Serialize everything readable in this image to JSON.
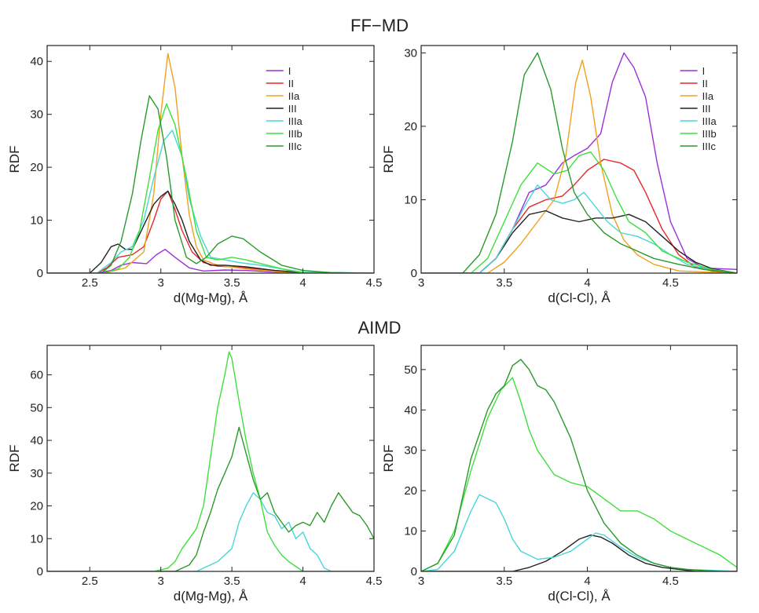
{
  "section_titles": {
    "top": "FF−MD",
    "bottom": "AIMD"
  },
  "colors": {
    "I": "#9b30d9",
    "II": "#e8262b",
    "IIa": "#f2a01f",
    "III": "#222222",
    "IIIa": "#49d6d6",
    "IIIb": "#3ee03e",
    "IIIc": "#2a9a2a"
  },
  "chart_data": [
    {
      "type": "line",
      "section": "FF-MD",
      "xlabel": "d(Mg-Mg), Å",
      "ylabel": "RDF",
      "xlim": [
        2.2,
        4.5
      ],
      "ylim": [
        0,
        43
      ],
      "xticks": [
        2.5,
        3,
        3.5,
        4,
        4.5
      ],
      "yticks": [
        0,
        10,
        20,
        30,
        40
      ],
      "legend": "top-right",
      "series": [
        {
          "name": "I",
          "x": [
            2.2,
            2.55,
            2.65,
            2.72,
            2.8,
            2.9,
            2.97,
            3.03,
            3.1,
            3.2,
            3.3,
            3.45,
            3.6,
            3.8,
            4.0,
            4.5
          ],
          "values": [
            0,
            0,
            0.5,
            1.5,
            2.0,
            1.8,
            3.5,
            4.5,
            3.0,
            1.0,
            0.4,
            0.6,
            0.5,
            0.2,
            0.1,
            0
          ]
        },
        {
          "name": "II",
          "x": [
            2.2,
            2.55,
            2.62,
            2.7,
            2.8,
            2.88,
            2.95,
            3.0,
            3.05,
            3.1,
            3.15,
            3.22,
            3.3,
            3.4,
            3.5,
            3.6,
            3.8,
            4.0,
            4.5
          ],
          "values": [
            0,
            0,
            1.0,
            3.0,
            3.5,
            5.0,
            10.0,
            14.0,
            15.5,
            12.0,
            8.0,
            4.0,
            2.0,
            1.3,
            1.2,
            1.0,
            0.5,
            0.1,
            0
          ]
        },
        {
          "name": "IIa",
          "x": [
            2.2,
            2.6,
            2.75,
            2.88,
            2.95,
            3.0,
            3.05,
            3.1,
            3.15,
            3.2,
            3.25,
            3.3,
            3.4,
            3.6,
            3.8,
            4.0,
            4.5
          ],
          "values": [
            0,
            0,
            1.0,
            4.0,
            15.0,
            30.0,
            41.5,
            35.0,
            22.0,
            11.0,
            5.0,
            2.5,
            1.5,
            0.8,
            0.3,
            0.1,
            0
          ]
        },
        {
          "name": "III",
          "x": [
            2.2,
            2.5,
            2.58,
            2.65,
            2.7,
            2.75,
            2.8,
            2.88,
            2.95,
            3.0,
            3.05,
            3.1,
            3.15,
            3.2,
            3.28,
            3.35,
            3.45,
            3.6,
            3.8,
            4.0,
            4.5
          ],
          "values": [
            0,
            0,
            2.0,
            5.0,
            5.5,
            4.5,
            4.5,
            9.0,
            13.0,
            14.5,
            15.5,
            13.0,
            10.0,
            6.0,
            2.5,
            1.5,
            1.5,
            1.2,
            0.5,
            0.1,
            0
          ]
        },
        {
          "name": "IIIa",
          "x": [
            2.2,
            2.55,
            2.65,
            2.72,
            2.8,
            2.88,
            2.95,
            3.02,
            3.08,
            3.15,
            3.2,
            3.28,
            3.35,
            3.45,
            3.55,
            3.7,
            3.85,
            4.0,
            4.5
          ],
          "values": [
            0,
            0,
            2.0,
            4.0,
            5.0,
            10.0,
            18.0,
            25.0,
            27.0,
            22.0,
            14.0,
            7.0,
            3.0,
            2.5,
            2.0,
            1.5,
            0.8,
            0.2,
            0
          ]
        },
        {
          "name": "IIIb",
          "x": [
            2.2,
            2.6,
            2.7,
            2.78,
            2.85,
            2.92,
            2.98,
            3.04,
            3.1,
            3.18,
            3.25,
            3.32,
            3.4,
            3.5,
            3.6,
            3.75,
            3.9,
            4.0,
            4.5
          ],
          "values": [
            0,
            0,
            0.8,
            3.0,
            8.0,
            18.0,
            27.0,
            32.0,
            28.0,
            18.0,
            8.0,
            3.0,
            2.5,
            3.0,
            2.5,
            1.5,
            0.5,
            0.1,
            0
          ]
        },
        {
          "name": "IIIc",
          "x": [
            2.2,
            2.58,
            2.65,
            2.72,
            2.8,
            2.86,
            2.92,
            2.98,
            3.04,
            3.1,
            3.18,
            3.25,
            3.32,
            3.4,
            3.5,
            3.58,
            3.7,
            3.85,
            4.0,
            4.2,
            4.5
          ],
          "values": [
            0,
            0,
            1.5,
            6.0,
            15.0,
            25.0,
            33.5,
            31.0,
            22.0,
            10.0,
            3.0,
            1.8,
            3.0,
            5.5,
            7.0,
            6.5,
            4.0,
            1.5,
            0.5,
            0.1,
            0
          ]
        }
      ]
    },
    {
      "type": "line",
      "section": "FF-MD",
      "xlabel": "d(Cl-Cl), Å",
      "ylabel": "RDF",
      "xlim": [
        3.0,
        4.9
      ],
      "ylim": [
        0,
        31
      ],
      "xticks": [
        3,
        3.5,
        4,
        4.5
      ],
      "yticks": [
        0,
        10,
        20,
        30
      ],
      "legend": "top-right",
      "series": [
        {
          "name": "I",
          "x": [
            3.0,
            3.35,
            3.45,
            3.55,
            3.65,
            3.75,
            3.85,
            3.92,
            4.0,
            4.08,
            4.15,
            4.22,
            4.28,
            4.35,
            4.42,
            4.5,
            4.6,
            4.7,
            4.9
          ],
          "values": [
            0,
            0,
            2.0,
            6.0,
            11.0,
            12.0,
            15.0,
            16.0,
            17.0,
            19.0,
            26.0,
            30.0,
            28.0,
            24.0,
            15.0,
            7.0,
            2.0,
            0.7,
            0.5
          ]
        },
        {
          "name": "II",
          "x": [
            3.0,
            3.35,
            3.45,
            3.55,
            3.65,
            3.75,
            3.85,
            3.92,
            4.0,
            4.1,
            4.2,
            4.28,
            4.35,
            4.45,
            4.55,
            4.65,
            4.75,
            4.9
          ],
          "values": [
            0,
            0,
            2.0,
            6.0,
            9.0,
            10.0,
            10.5,
            12.0,
            14.0,
            15.5,
            15.0,
            14.0,
            11.0,
            6.0,
            2.5,
            0.8,
            0.3,
            0
          ]
        },
        {
          "name": "IIa",
          "x": [
            3.0,
            3.4,
            3.5,
            3.6,
            3.7,
            3.8,
            3.87,
            3.93,
            3.97,
            4.02,
            4.08,
            4.15,
            4.22,
            4.3,
            4.4,
            4.55,
            4.9
          ],
          "values": [
            0,
            0,
            1.5,
            4.0,
            7.0,
            10.0,
            16.0,
            26.0,
            29.0,
            24.0,
            15.0,
            8.0,
            4.5,
            2.5,
            1.2,
            0.3,
            0
          ]
        },
        {
          "name": "III",
          "x": [
            3.0,
            3.35,
            3.45,
            3.55,
            3.65,
            3.75,
            3.85,
            3.95,
            4.05,
            4.15,
            4.25,
            4.35,
            4.45,
            4.55,
            4.65,
            4.75,
            4.9
          ],
          "values": [
            0,
            0,
            2.0,
            5.5,
            8.0,
            8.5,
            7.5,
            7.0,
            7.5,
            7.5,
            8.0,
            7.0,
            5.0,
            3.0,
            1.5,
            0.6,
            0
          ]
        },
        {
          "name": "IIIa",
          "x": [
            3.0,
            3.35,
            3.45,
            3.55,
            3.62,
            3.7,
            3.78,
            3.85,
            3.92,
            3.98,
            4.05,
            4.12,
            4.2,
            4.3,
            4.4,
            4.5,
            4.6,
            4.75,
            4.9
          ],
          "values": [
            0,
            0,
            2.0,
            6.0,
            9.0,
            12.0,
            10.0,
            9.5,
            10.0,
            11.0,
            9.0,
            7.0,
            5.5,
            5.0,
            4.0,
            2.5,
            1.2,
            0.4,
            0
          ]
        },
        {
          "name": "IIIb",
          "x": [
            3.0,
            3.3,
            3.4,
            3.5,
            3.6,
            3.7,
            3.8,
            3.88,
            3.95,
            4.02,
            4.1,
            4.18,
            4.25,
            4.35,
            4.45,
            4.6,
            4.75,
            4.9
          ],
          "values": [
            0,
            0,
            2.0,
            7.0,
            12.0,
            15.0,
            13.5,
            14.0,
            16.0,
            16.5,
            14.0,
            10.0,
            7.0,
            5.5,
            3.0,
            1.5,
            0.5,
            0
          ]
        },
        {
          "name": "IIIc",
          "x": [
            3.0,
            3.25,
            3.35,
            3.45,
            3.55,
            3.62,
            3.7,
            3.78,
            3.85,
            3.92,
            4.0,
            4.1,
            4.2,
            4.3,
            4.4,
            4.55,
            4.7,
            4.9
          ],
          "values": [
            0,
            0,
            2.5,
            8.0,
            18.0,
            27.0,
            30.0,
            25.0,
            17.0,
            11.0,
            8.0,
            5.5,
            4.0,
            3.0,
            2.0,
            1.2,
            0.5,
            0
          ]
        }
      ]
    },
    {
      "type": "line",
      "section": "AIMD",
      "xlabel": "d(Mg-Mg), Å",
      "ylabel": "RDF",
      "xlim": [
        2.2,
        4.5
      ],
      "ylim": [
        0,
        69
      ],
      "xticks": [
        2.5,
        3,
        3.5,
        4,
        4.5
      ],
      "yticks": [
        0,
        10,
        20,
        30,
        40,
        50,
        60
      ],
      "legend": "none",
      "series": [
        {
          "name": "IIIa",
          "x": [
            2.2,
            3.25,
            3.3,
            3.4,
            3.5,
            3.55,
            3.6,
            3.65,
            3.7,
            3.75,
            3.8,
            3.85,
            3.9,
            3.95,
            4.0,
            4.05,
            4.1,
            4.15,
            4.2,
            4.5
          ],
          "values": [
            0,
            0,
            1.0,
            3.0,
            7.0,
            15.0,
            20.0,
            24.0,
            22.0,
            18.0,
            17.0,
            13.0,
            15.0,
            10.0,
            12.0,
            7.0,
            5.0,
            1.0,
            0,
            0
          ]
        },
        {
          "name": "IIIb",
          "x": [
            2.2,
            2.95,
            3.05,
            3.1,
            3.15,
            3.2,
            3.25,
            3.3,
            3.35,
            3.4,
            3.45,
            3.48,
            3.5,
            3.55,
            3.6,
            3.65,
            3.7,
            3.75,
            3.8,
            3.85,
            3.9,
            4.0,
            4.5
          ],
          "values": [
            0,
            0,
            1.0,
            3.0,
            7.0,
            10.0,
            13.0,
            20.0,
            35.0,
            50.0,
            60.0,
            67.0,
            65.0,
            52.0,
            40.0,
            30.0,
            22.0,
            12.0,
            8.0,
            5.0,
            3.0,
            0,
            0
          ]
        },
        {
          "name": "IIIc",
          "x": [
            2.2,
            3.1,
            3.2,
            3.25,
            3.3,
            3.35,
            3.4,
            3.45,
            3.5,
            3.55,
            3.6,
            3.65,
            3.7,
            3.75,
            3.8,
            3.85,
            3.9,
            3.95,
            4.0,
            4.05,
            4.1,
            4.15,
            4.2,
            4.25,
            4.3,
            4.35,
            4.4,
            4.45,
            4.5
          ],
          "values": [
            0,
            0,
            2.0,
            5.0,
            12.0,
            18.0,
            25.0,
            30.0,
            35.0,
            44.0,
            36.0,
            28.0,
            22.0,
            24.0,
            18.0,
            15.0,
            12.0,
            14.0,
            15.0,
            14.0,
            18.0,
            15.0,
            20.0,
            24.0,
            21.0,
            18.0,
            17.0,
            14.0,
            10.0
          ]
        }
      ]
    },
    {
      "type": "line",
      "section": "AIMD",
      "xlabel": "d(Cl-Cl), Å",
      "ylabel": "RDF",
      "xlim": [
        3.0,
        4.9
      ],
      "ylim": [
        0,
        56
      ],
      "xticks": [
        3,
        3.5,
        4,
        4.5
      ],
      "yticks": [
        0,
        10,
        20,
        30,
        40,
        50
      ],
      "legend": "none",
      "series": [
        {
          "name": "III",
          "x": [
            3.0,
            3.55,
            3.65,
            3.75,
            3.85,
            3.95,
            4.02,
            4.08,
            4.15,
            4.25,
            4.35,
            4.45,
            4.55,
            4.65,
            4.9
          ],
          "values": [
            0,
            0,
            1.0,
            2.5,
            5.0,
            8.0,
            9.0,
            8.5,
            7.0,
            4.0,
            2.0,
            1.0,
            0.5,
            0,
            0
          ]
        },
        {
          "name": "IIIa",
          "x": [
            3.0,
            3.1,
            3.2,
            3.3,
            3.35,
            3.4,
            3.45,
            3.5,
            3.55,
            3.6,
            3.7,
            3.8,
            3.9,
            4.0,
            4.05,
            4.1,
            4.2,
            4.3,
            4.4,
            4.5,
            4.6,
            4.9
          ],
          "values": [
            0,
            0.5,
            5.0,
            15.0,
            19.0,
            18.0,
            17.0,
            13.0,
            8.0,
            5.0,
            3.0,
            3.5,
            5.0,
            8.0,
            9.5,
            9.0,
            6.0,
            3.5,
            2.0,
            1.0,
            0.5,
            0
          ]
        },
        {
          "name": "IIIb",
          "x": [
            3.0,
            3.1,
            3.2,
            3.3,
            3.4,
            3.48,
            3.55,
            3.6,
            3.65,
            3.7,
            3.8,
            3.9,
            4.0,
            4.1,
            4.2,
            4.3,
            4.4,
            4.5,
            4.6,
            4.7,
            4.8,
            4.9
          ],
          "values": [
            0,
            2.0,
            10.0,
            25.0,
            38.0,
            45.0,
            48.0,
            42.0,
            35.0,
            30.0,
            24.0,
            22.0,
            21.0,
            18.0,
            15.0,
            15.0,
            13.0,
            10.0,
            8.0,
            6.0,
            4.0,
            1.0
          ]
        },
        {
          "name": "IIIc",
          "x": [
            3.0,
            3.1,
            3.2,
            3.3,
            3.4,
            3.45,
            3.5,
            3.55,
            3.6,
            3.65,
            3.7,
            3.75,
            3.8,
            3.9,
            4.0,
            4.1,
            4.2,
            4.3,
            4.4,
            4.5,
            4.6,
            4.7,
            4.8,
            4.9
          ],
          "values": [
            0,
            2.0,
            9.0,
            28.0,
            40.0,
            44.0,
            46.0,
            51.0,
            52.5,
            50.0,
            46.0,
            45.0,
            42.0,
            33.0,
            20.0,
            12.0,
            7.0,
            4.0,
            2.0,
            1.0,
            0.5,
            0.2,
            0,
            0
          ]
        }
      ]
    }
  ]
}
